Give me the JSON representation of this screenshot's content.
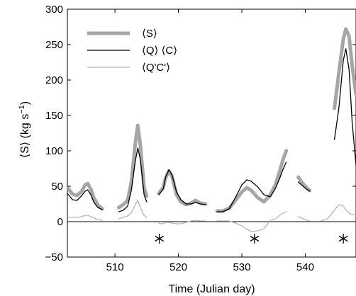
{
  "chart_data": {
    "type": "line",
    "xlabel": "Time (Julian day)",
    "ylabel": "⟨S⟩  (kg s",
    "ylabel_sup": "−1",
    "ylabel_close": ")",
    "xlim": [
      502.5,
      548
    ],
    "ylim": [
      -50,
      300
    ],
    "x_ticks": [
      510,
      520,
      530,
      540
    ],
    "y_ticks": [
      -50,
      0,
      50,
      100,
      150,
      200,
      250,
      300
    ],
    "grid": false,
    "legend_position": "top-left",
    "zero_line": true,
    "markers": {
      "symbol": "*",
      "x": [
        517,
        532,
        546
      ],
      "y": -24
    },
    "series": [
      {
        "name": "⟨S⟩",
        "color": "#a6a6a6",
        "width": 5,
        "segments": [
          [
            [
              502.6,
              47
            ],
            [
              503.3,
              39
            ],
            [
              504.0,
              37
            ],
            [
              504.7,
              42
            ],
            [
              505.3,
              52
            ],
            [
              505.7,
              54
            ],
            [
              506.2,
              46
            ],
            [
              506.7,
              33
            ],
            [
              507.3,
              24
            ],
            [
              508.0,
              18
            ]
          ],
          [
            [
              510.6,
              20
            ],
            [
              511.3,
              24
            ],
            [
              512.0,
              30
            ],
            [
              512.6,
              56
            ],
            [
              513.2,
              110
            ],
            [
              513.6,
              136
            ],
            [
              514.0,
              108
            ],
            [
              514.6,
              48
            ],
            [
              515.0,
              36
            ]
          ],
          [
            [
              516.9,
              40
            ],
            [
              517.6,
              48
            ],
            [
              518.0,
              62
            ],
            [
              518.5,
              72
            ],
            [
              519.0,
              64
            ],
            [
              519.7,
              38
            ],
            [
              520.4,
              28
            ],
            [
              521.2,
              24
            ],
            [
              522.0,
              26
            ],
            [
              522.7,
              30
            ],
            [
              523.5,
              26
            ],
            [
              524.3,
              25
            ]
          ],
          [
            [
              526.1,
              15
            ],
            [
              527.0,
              15
            ],
            [
              528.0,
              19
            ],
            [
              529.0,
              30
            ],
            [
              530.0,
              42
            ],
            [
              530.8,
              48
            ],
            [
              531.5,
              44
            ],
            [
              532.5,
              34
            ],
            [
              533.5,
              28
            ],
            [
              534.5,
              38
            ],
            [
              535.3,
              52
            ],
            [
              536.0,
              72
            ],
            [
              536.5,
              88
            ],
            [
              537.0,
              100
            ]
          ],
          [
            [
              538.9,
              63
            ],
            [
              539.5,
              55
            ],
            [
              540.2,
              48
            ],
            [
              540.7,
              44
            ]
          ],
          [
            [
              544.6,
              160
            ],
            [
              545.3,
              210
            ],
            [
              546.0,
              258
            ],
            [
              546.4,
              272
            ],
            [
              546.9,
              262
            ],
            [
              547.4,
              220
            ],
            [
              548.0,
              180
            ]
          ]
        ]
      },
      {
        "name": "⟨Q⟩ ⟨C⟩",
        "color": "#000000",
        "width": 1.3,
        "segments": [
          [
            [
              502.6,
              39
            ],
            [
              503.3,
              31
            ],
            [
              504.0,
              30
            ],
            [
              504.7,
              36
            ],
            [
              505.3,
              43
            ],
            [
              505.7,
              45
            ],
            [
              506.2,
              38
            ],
            [
              506.7,
              27
            ],
            [
              507.3,
              20
            ],
            [
              508.0,
              17
            ]
          ],
          [
            [
              510.6,
              14
            ],
            [
              511.3,
              16
            ],
            [
              512.0,
              22
            ],
            [
              512.6,
              45
            ],
            [
              513.2,
              85
            ],
            [
              513.6,
              104
            ],
            [
              514.0,
              88
            ],
            [
              514.6,
              38
            ],
            [
              515.0,
              28
            ]
          ],
          [
            [
              516.9,
              38
            ],
            [
              517.6,
              46
            ],
            [
              518.0,
              63
            ],
            [
              518.5,
              73
            ],
            [
              519.0,
              66
            ],
            [
              519.7,
              42
            ],
            [
              520.4,
              31
            ],
            [
              521.2,
              25
            ],
            [
              522.0,
              25
            ],
            [
              522.7,
              27
            ],
            [
              523.5,
              25
            ],
            [
              524.3,
              24
            ]
          ],
          [
            [
              526.1,
              14
            ],
            [
              527.0,
              14
            ],
            [
              528.0,
              18
            ],
            [
              529.0,
              34
            ],
            [
              530.0,
              52
            ],
            [
              530.8,
              59
            ],
            [
              531.5,
              57
            ],
            [
              532.5,
              49
            ],
            [
              533.5,
              38
            ],
            [
              534.5,
              35
            ],
            [
              535.3,
              47
            ],
            [
              536.0,
              62
            ],
            [
              536.5,
              74
            ],
            [
              537.0,
              84
            ]
          ],
          [
            [
              538.9,
              56
            ],
            [
              539.5,
              51
            ],
            [
              540.2,
              46
            ],
            [
              540.7,
              43
            ]
          ],
          [
            [
              544.6,
              116
            ],
            [
              545.3,
              160
            ],
            [
              546.0,
              228
            ],
            [
              546.4,
              244
            ],
            [
              546.9,
              215
            ],
            [
              547.4,
              140
            ],
            [
              548.0,
              80
            ]
          ]
        ]
      },
      {
        "name": "⟨Q'C'⟩",
        "color": "#b5b5b5",
        "width": 1.3,
        "segments": [
          [
            [
              502.6,
              6
            ],
            [
              503.3,
              6
            ],
            [
              504.0,
              6
            ],
            [
              504.7,
              7
            ],
            [
              505.3,
              9
            ],
            [
              505.7,
              9
            ],
            [
              506.2,
              7
            ],
            [
              506.7,
              5
            ],
            [
              507.3,
              3
            ],
            [
              508.0,
              2
            ]
          ],
          [
            [
              510.6,
              4
            ],
            [
              511.3,
              6
            ],
            [
              512.0,
              8
            ],
            [
              512.6,
              13
            ],
            [
              513.2,
              24
            ],
            [
              513.6,
              30
            ],
            [
              514.0,
              20
            ],
            [
              514.6,
              9
            ],
            [
              515.0,
              6
            ]
          ],
          [
            [
              516.9,
              -2
            ],
            [
              517.6,
              -3
            ],
            [
              518.0,
              -1
            ],
            [
              518.5,
              -1
            ],
            [
              519.0,
              -2
            ],
            [
              519.7,
              -3
            ],
            [
              520.4,
              -3
            ],
            [
              521.2,
              -1
            ],
            [
              522.0,
              1
            ],
            [
              522.7,
              2
            ],
            [
              523.5,
              1
            ],
            [
              524.3,
              1
            ]
          ],
          [
            [
              526.1,
              1
            ],
            [
              527.0,
              1
            ],
            [
              528.0,
              1
            ],
            [
              529.0,
              -2
            ],
            [
              530.0,
              -6
            ],
            [
              530.8,
              -11
            ],
            [
              531.5,
              -14
            ],
            [
              532.5,
              -13
            ],
            [
              533.5,
              -10
            ],
            [
              534.5,
              2
            ],
            [
              535.3,
              4
            ],
            [
              536.0,
              9
            ],
            [
              536.5,
              12
            ],
            [
              537.0,
              14
            ]
          ],
          [
            [
              538.9,
              7
            ],
            [
              539.5,
              5
            ],
            [
              540.2,
              2
            ],
            [
              540.7,
              1
            ]
          ],
          [
            [
              542.5,
              1
            ],
            [
              543.5,
              4
            ],
            [
              544.6,
              16
            ],
            [
              545.3,
              24
            ],
            [
              546.0,
              22
            ],
            [
              546.4,
              17
            ],
            [
              546.9,
              12
            ],
            [
              547.4,
              10
            ],
            [
              548.0,
              9
            ]
          ]
        ]
      }
    ]
  }
}
